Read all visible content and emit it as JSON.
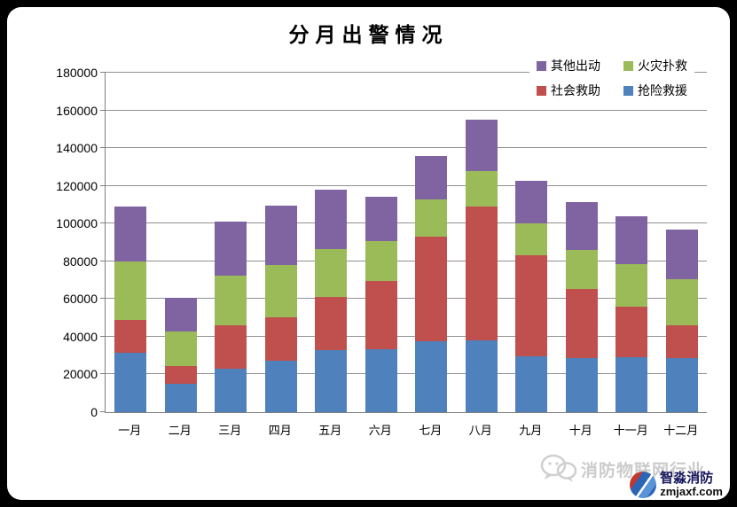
{
  "chart_data": {
    "type": "bar",
    "subtype": "stacked-vertical",
    "title": "分月出警情况",
    "categories": [
      "一月",
      "二月",
      "三月",
      "四月",
      "五月",
      "六月",
      "七月",
      "八月",
      "九月",
      "十月",
      "十一月",
      "十二月"
    ],
    "series": [
      {
        "name": "抢险救援",
        "color": "#4F81BD",
        "values": [
          31500,
          15000,
          23000,
          27500,
          33000,
          33500,
          37500,
          38000,
          29500,
          28500,
          29000,
          28500
        ]
      },
      {
        "name": "社会救助",
        "color": "#C0504D",
        "values": [
          17500,
          9500,
          23000,
          23000,
          28000,
          36000,
          55500,
          71000,
          53500,
          37000,
          27000,
          17500
        ]
      },
      {
        "name": "火灾扑救",
        "color": "#9BBB59",
        "values": [
          31000,
          18500,
          26500,
          27500,
          25500,
          21000,
          20000,
          19000,
          17000,
          20500,
          22500,
          24500
        ]
      },
      {
        "name": "其他出动",
        "color": "#8064A2",
        "values": [
          29000,
          17500,
          28500,
          31500,
          31500,
          23500,
          23000,
          27000,
          22500,
          25500,
          25500,
          26500
        ]
      }
    ],
    "stack_totals": [
      109000,
      60500,
      101000,
      109500,
      118000,
      114000,
      136000,
      155000,
      122500,
      111500,
      104000,
      97000
    ],
    "stack_order_bottom_to_top": [
      "抢险救援",
      "社会救助",
      "火灾扑救",
      "其他出动"
    ],
    "legend_display_order": [
      "其他出动",
      "火灾扑救",
      "社会救助",
      "抢险救援"
    ],
    "legend_position": "top-right",
    "grid": true,
    "xlabel": "",
    "ylabel": "",
    "y_axis": {
      "min": 0,
      "max": 180000,
      "step": 20000,
      "tick_labels": [
        "0",
        "20000",
        "40000",
        "60000",
        "80000",
        "100000",
        "120000",
        "140000",
        "160000",
        "180000"
      ]
    }
  },
  "watermark": {
    "industry_text": "消防物联网行业",
    "brand_name": "智淼消防",
    "brand_url": "zmjaxf.com"
  },
  "colors": {
    "background": "#000000",
    "card": "#ffffff",
    "gridline": "#919191",
    "axis": "#7f7f7f",
    "watermark_gray": "#cbcbcb"
  }
}
